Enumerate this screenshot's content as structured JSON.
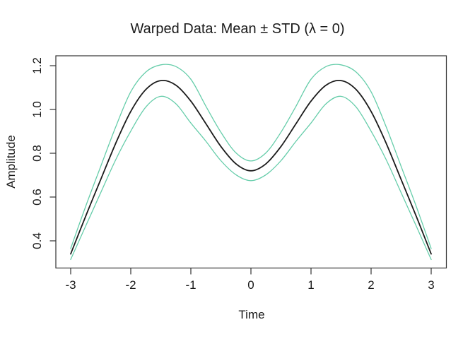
{
  "page": {
    "background": "#ffffff"
  },
  "colors": {
    "axis": "#333333",
    "text": "#1a1a1a",
    "mean_line": "#1b1b1b",
    "std_band_line": "#66cdaa"
  },
  "chart_data": {
    "type": "line",
    "title": "Warped Data: Mean ± STD (λ = 0)",
    "xlabel": "Time",
    "ylabel": "Amplitude",
    "xlim": [
      -3.25,
      3.25
    ],
    "ylim": [
      0.27,
      1.25
    ],
    "grid": false,
    "legend": "none",
    "x_ticks": [
      -3,
      -2,
      -1,
      0,
      1,
      2,
      3
    ],
    "x_tick_labels": [
      "-3",
      "-2",
      "-1",
      "0",
      "1",
      "2",
      "3"
    ],
    "y_ticks": [
      0.4,
      0.6,
      0.8,
      1.0,
      1.2
    ],
    "y_tick_labels": [
      "0.4",
      "0.6",
      "0.8",
      "1.0",
      "1.2"
    ],
    "x": [
      -3,
      -2.75,
      -2.5,
      -2.25,
      -2,
      -1.75,
      -1.5,
      -1.25,
      -1,
      -0.75,
      -0.5,
      -0.25,
      0,
      0.25,
      0.5,
      0.75,
      1,
      1.25,
      1.5,
      1.75,
      2,
      2.25,
      2.5,
      2.75,
      3
    ],
    "series": [
      {
        "name": "mean",
        "color": "#1b1b1b",
        "values": [
          0.34,
          0.513,
          0.68,
          0.846,
          0.991,
          1.091,
          1.132,
          1.111,
          1.038,
          0.935,
          0.831,
          0.752,
          0.72,
          0.752,
          0.831,
          0.935,
          1.038,
          1.111,
          1.132,
          1.091,
          0.991,
          0.846,
          0.68,
          0.513,
          0.34
        ]
      },
      {
        "name": "mean_plus_std",
        "color": "#66cdaa",
        "values": [
          0.365,
          0.558,
          0.74,
          0.921,
          1.081,
          1.171,
          1.204,
          1.196,
          1.138,
          1.015,
          0.896,
          0.802,
          0.765,
          0.802,
          0.896,
          1.015,
          1.138,
          1.196,
          1.204,
          1.171,
          1.081,
          0.921,
          0.74,
          0.558,
          0.365
        ]
      },
      {
        "name": "mean_minus_std",
        "color": "#66cdaa",
        "values": [
          0.315,
          0.468,
          0.62,
          0.771,
          0.901,
          1.011,
          1.06,
          1.026,
          0.938,
          0.855,
          0.766,
          0.702,
          0.675,
          0.702,
          0.766,
          0.855,
          0.938,
          1.026,
          1.06,
          1.011,
          0.901,
          0.771,
          0.62,
          0.468,
          0.315
        ]
      }
    ]
  }
}
